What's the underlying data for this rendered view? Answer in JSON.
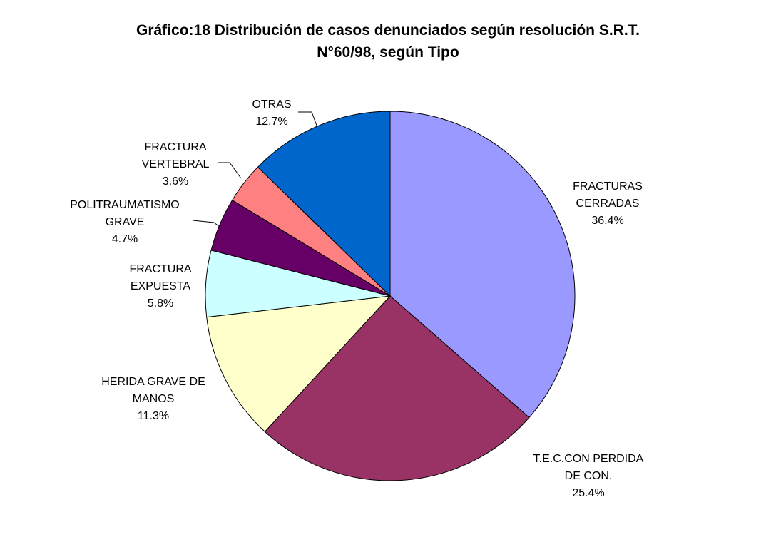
{
  "chart_data": {
    "type": "pie",
    "title_line1": "Gráfico:18 Distribución de casos denunciados según resolución S.R.T.",
    "title_line2": "N°60/98, según Tipo",
    "start_angle_deg": 0,
    "direction": "clockwise",
    "slices": [
      {
        "label_lines": [
          "FRACTURAS",
          "CERRADAS"
        ],
        "value": 36.4,
        "value_label": "36.4%",
        "color": "#9999ff"
      },
      {
        "label_lines": [
          "T.E.C.CON PERDIDA",
          "DE CON."
        ],
        "value": 25.4,
        "value_label": "25.4%",
        "color": "#993366"
      },
      {
        "label_lines": [
          "HERIDA GRAVE DE",
          "MANOS"
        ],
        "value": 11.3,
        "value_label": "11.3%",
        "color": "#ffffcc"
      },
      {
        "label_lines": [
          "FRACTURA",
          "EXPUESTA"
        ],
        "value": 5.8,
        "value_label": "5.8%",
        "color": "#ccffff"
      },
      {
        "label_lines": [
          "POLITRAUMATISMO",
          "GRAVE"
        ],
        "value": 4.7,
        "value_label": "4.7%",
        "color": "#660066"
      },
      {
        "label_lines": [
          "FRACTURA",
          "VERTEBRAL"
        ],
        "value": 3.6,
        "value_label": "3.6%",
        "color": "#ff8080"
      },
      {
        "label_lines": [
          "OTRAS"
        ],
        "value": 12.7,
        "value_label": "12.7%",
        "color": "#0066cc"
      }
    ]
  }
}
